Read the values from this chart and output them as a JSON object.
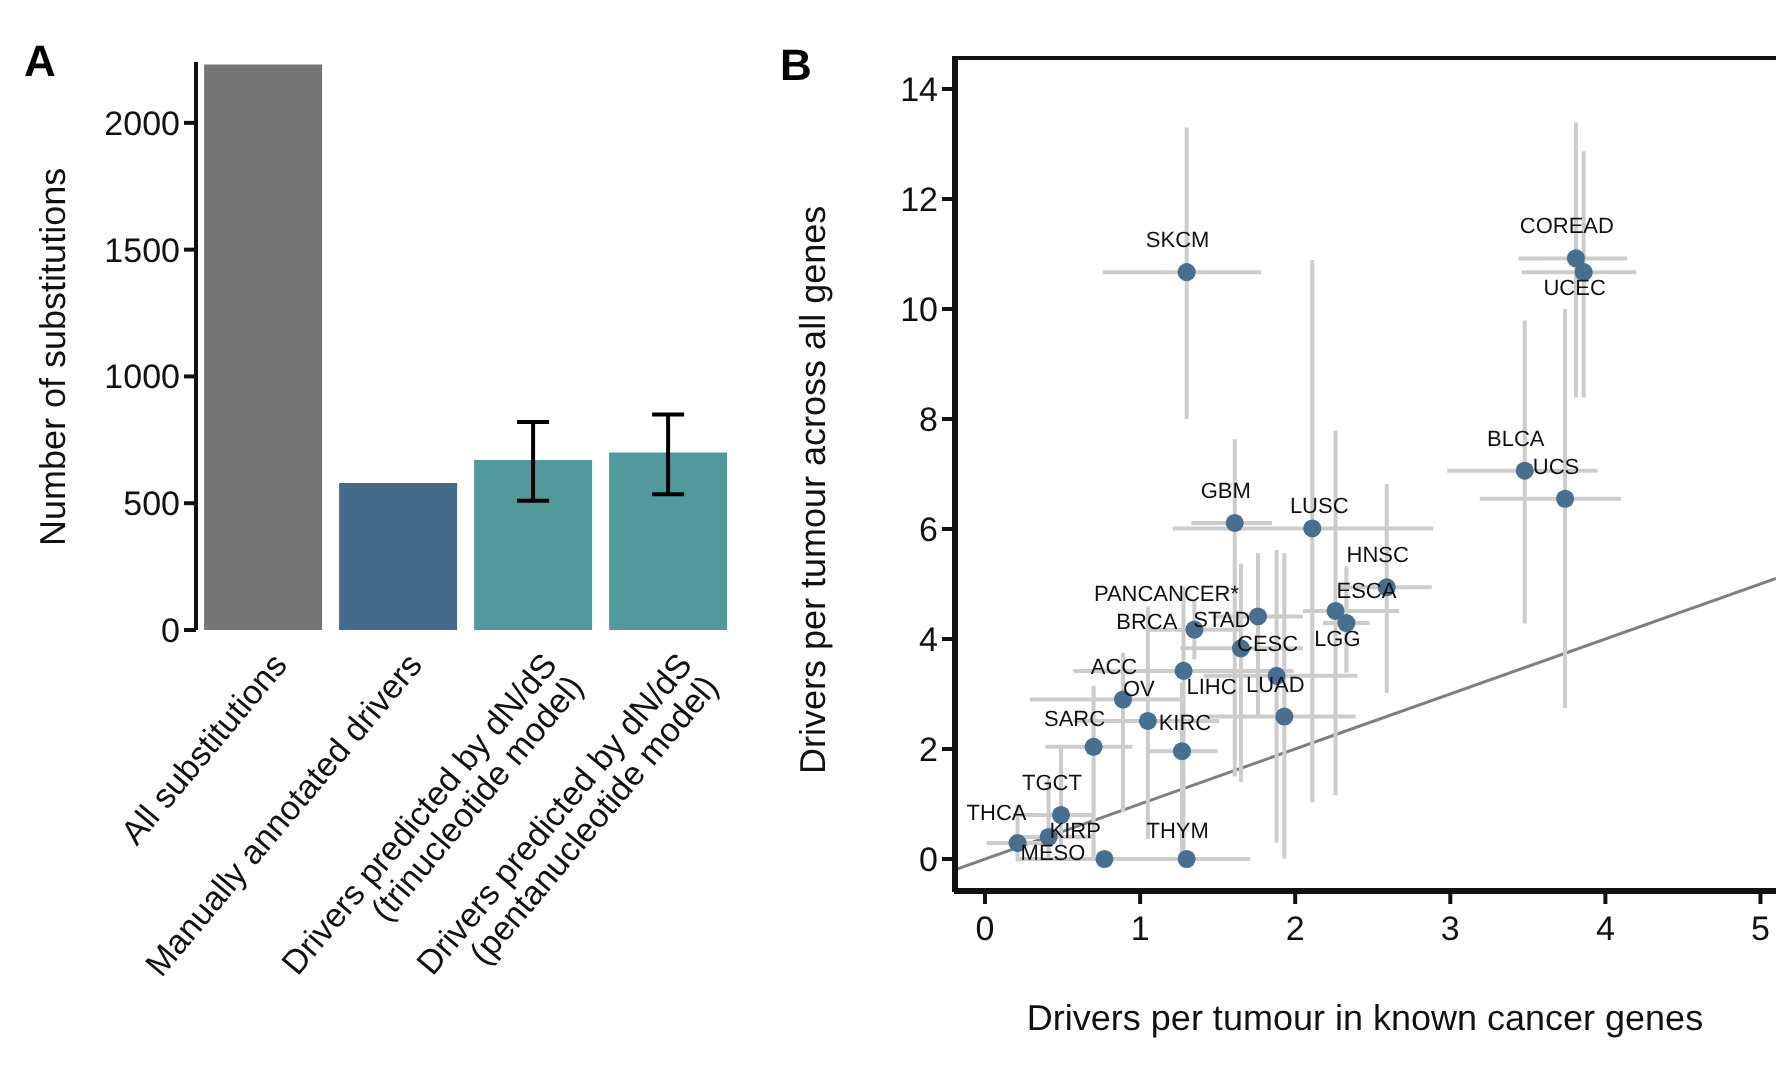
{
  "chart_data": [
    {
      "type": "bar",
      "title": "A",
      "ylabel": "Number of substitutions",
      "categories": [
        "All substitutions",
        "Manually annotated drivers",
        "Drivers predicted by dN/dS\n(trinucleotide model)",
        "Drivers predicted by dN/dS\n(pentanucleotide model)"
      ],
      "values": [
        2230,
        580,
        670,
        700
      ],
      "colors": [
        "#767676",
        "#446b8b",
        "#52999b",
        "#52999b"
      ],
      "errors": [
        null,
        null,
        [
          510,
          820
        ],
        [
          535,
          850
        ]
      ],
      "ylim": [
        0,
        2240
      ],
      "yticks": [
        0,
        500,
        1000,
        1500,
        2000
      ],
      "grid": false,
      "legend": false
    },
    {
      "type": "scatter",
      "title": "B",
      "xlabel": "Drivers per tumour in known cancer genes",
      "ylabel": "Drivers per tumour across all genes",
      "xlim": [
        -0.2,
        5.1
      ],
      "ylim": [
        -0.6,
        14.6
      ],
      "xticks": [
        0,
        1,
        2,
        3,
        4,
        5
      ],
      "yticks": [
        0,
        2,
        4,
        6,
        8,
        10,
        12,
        14
      ],
      "grid": false,
      "legend": false,
      "series": [
        {
          "type": "scatter",
          "color": "#4a6e8e",
          "marker": "circle",
          "x": [
            1.3,
            3.81,
            3.86,
            3.48,
            3.74,
            1.61,
            2.11,
            2.59,
            2.26,
            2.33,
            1.76,
            1.35,
            1.65,
            1.88,
            1.28,
            1.93,
            0.89,
            1.05,
            0.7,
            1.27,
            0.49,
            0.21,
            0.41,
            0.77,
            1.3
          ],
          "values": [
            10.67,
            10.92,
            10.67,
            7.06,
            6.55,
            6.11,
            6.01,
            4.94,
            4.51,
            4.29,
            4.41,
            4.17,
            3.83,
            3.33,
            3.42,
            2.59,
            2.9,
            2.51,
            2.04,
            1.96,
            0.8,
            0.29,
            0.4,
            0.0,
            0.0
          ],
          "value_labels": [
            "SKCM",
            "COREAD",
            "UCEC",
            "BLCA",
            "UCS",
            "GBM",
            "LUSC",
            "HNSC",
            "ESCA",
            "LGG",
            "PANCANCER*",
            "BRCA",
            "STAD",
            "CESC",
            "LIHC",
            "LUAD",
            "ACC",
            "OV",
            "SARC",
            "KIRC",
            "TGCT",
            "THCA",
            "KIRP",
            "MESO",
            "THYM"
          ],
          "xerrors": [
            [
              0.76,
              1.78
            ],
            [
              3.44,
              4.14
            ],
            [
              3.46,
              4.2
            ],
            [
              2.98,
              3.95
            ],
            [
              3.19,
              4.1
            ],
            [
              1.33,
              1.85
            ],
            [
              1.21,
              2.89
            ],
            [
              2.28,
              2.88
            ],
            [
              2.05,
              2.67
            ],
            [
              2.18,
              2.48
            ],
            [
              1.47,
              2.05
            ],
            [
              1.04,
              1.64
            ],
            [
              1.26,
              2.05
            ],
            [
              1.41,
              2.4
            ],
            [
              0.57,
              1.99
            ],
            [
              1.41,
              2.39
            ],
            [
              0.29,
              1.28
            ],
            [
              0.57,
              1.51
            ],
            [
              0.39,
              0.95
            ],
            [
              1.04,
              1.5
            ],
            [
              0.18,
              0.7
            ],
            [
              0.01,
              0.44
            ],
            [
              0.18,
              0.7
            ],
            [
              0.22,
              1.24
            ],
            [
              0.83,
              1.71
            ]
          ],
          "errors": [
            [
              8.0,
              13.3
            ],
            [
              8.39,
              13.39
            ],
            [
              8.39,
              12.87
            ],
            [
              4.28,
              9.79
            ],
            [
              2.75,
              10.0
            ],
            [
              1.5,
              7.63
            ],
            [
              1.03,
              10.89
            ],
            [
              3.02,
              6.82
            ],
            [
              1.16,
              7.79
            ],
            [
              3.39,
              5.32
            ],
            [
              2.6,
              5.56
            ],
            [
              3.63,
              4.71
            ],
            [
              1.4,
              5.37
            ],
            [
              0.3,
              5.62
            ],
            [
              0.13,
              4.95
            ],
            [
              0.01,
              5.56
            ],
            [
              0.85,
              3.75
            ],
            [
              0.37,
              4.59
            ],
            [
              0.01,
              3.15
            ],
            [
              0.0,
              3.2
            ],
            [
              0.25,
              2.06
            ],
            [
              -0.05,
              0.98
            ],
            [
              0.0,
              1.46
            ],
            null,
            null
          ]
        },
        {
          "type": "line",
          "color": "#7f7f7f",
          "x": [
            -0.2,
            5.1
          ],
          "values": [
            -0.2,
            5.1
          ]
        }
      ]
    }
  ]
}
